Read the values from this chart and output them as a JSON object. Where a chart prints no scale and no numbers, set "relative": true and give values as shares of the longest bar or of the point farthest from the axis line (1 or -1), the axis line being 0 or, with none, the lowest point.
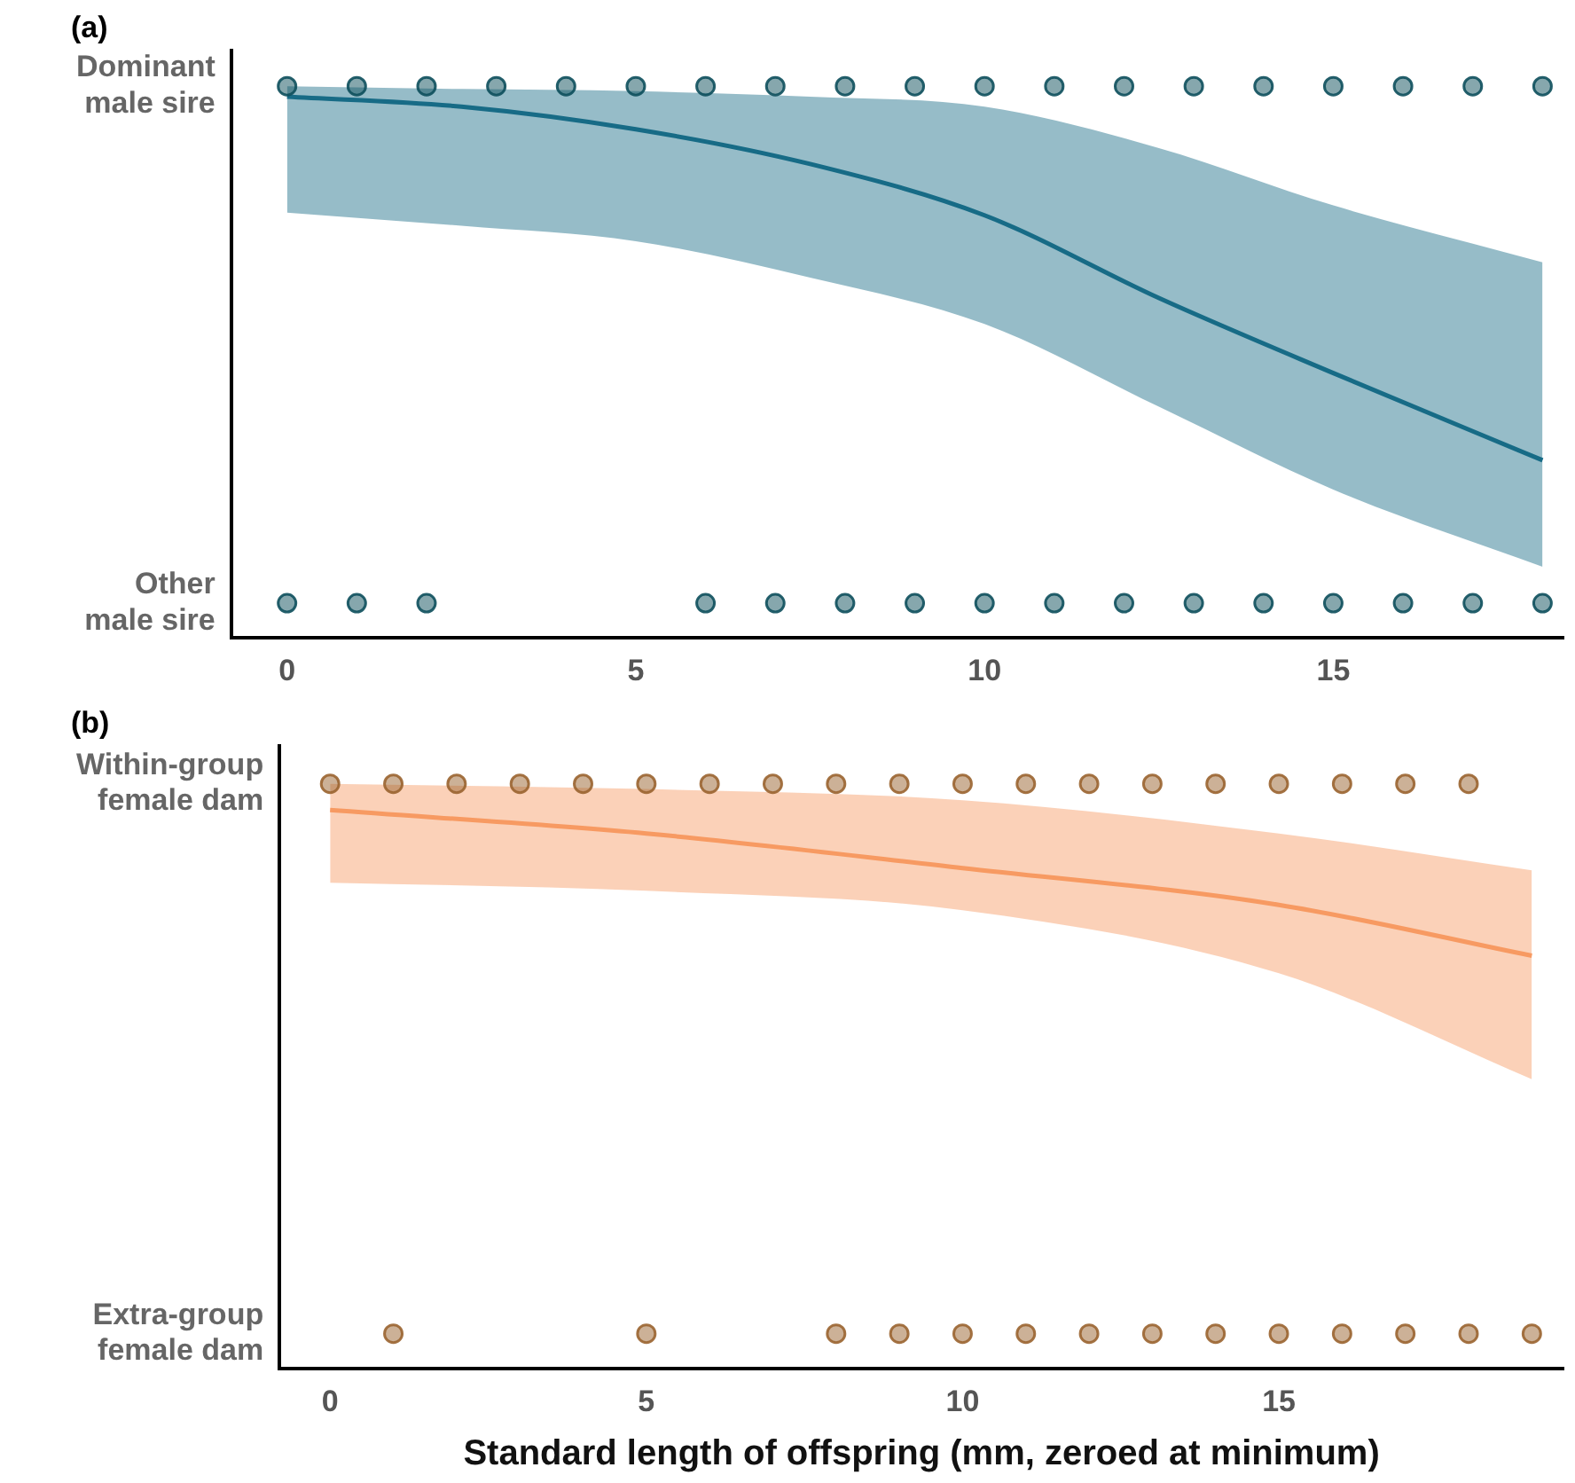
{
  "chart_data": [
    {
      "type": "line",
      "title": "(a)",
      "relative": true,
      "xlim": [
        -0.8,
        18.3
      ],
      "xticks": [
        0,
        5,
        10,
        15
      ],
      "y_categories": [
        "Dominant\nmale sire",
        "Other\nmale sire"
      ],
      "grid": false,
      "legend": false,
      "marker": "circle",
      "series": [
        {
          "type": "scatter",
          "color": "#0d4f5c",
          "x": [
            0,
            1,
            2,
            3,
            4,
            5,
            6,
            7,
            8,
            9,
            10,
            11,
            12,
            13,
            14,
            15,
            16,
            17,
            18,
            0,
            1,
            2,
            6,
            7,
            8,
            9,
            10,
            11,
            12,
            13,
            14,
            15,
            16,
            17,
            18
          ],
          "values": [
            1,
            1,
            1,
            1,
            1,
            1,
            1,
            1,
            1,
            1,
            1,
            1,
            1,
            1,
            1,
            1,
            1,
            1,
            1,
            0.063,
            0.063,
            0.063,
            0.063,
            0.063,
            0.063,
            0.063,
            0.063,
            0.063,
            0.063,
            0.063,
            0.063,
            0.063,
            0.063,
            0.063,
            0.063
          ]
        },
        {
          "type": "line",
          "marker": "none",
          "color": "#176b86",
          "x": [
            0,
            2.5,
            5,
            7.5,
            10,
            12.5,
            15,
            18
          ],
          "values": [
            0.981,
            0.963,
            0.922,
            0.859,
            0.766,
            0.616,
            0.48,
            0.322
          ],
          "lower": [
            0.771,
            0.747,
            0.719,
            0.653,
            0.569,
            0.419,
            0.269,
            0.129
          ],
          "upper": [
            1.0,
            0.995,
            0.991,
            0.981,
            0.963,
            0.888,
            0.784,
            0.681
          ]
        }
      ]
    },
    {
      "type": "line",
      "title": "(b)",
      "xlabel": "Standard length of offspring (mm, zeroed at minimum)",
      "relative": true,
      "xlim": [
        -0.8,
        19.5
      ],
      "xticks": [
        0,
        5,
        10,
        15
      ],
      "y_categories": [
        "Within-group\nfemale dam",
        "Extra-group\nfemale dam"
      ],
      "grid": false,
      "legend": false,
      "marker": "circle",
      "series": [
        {
          "type": "scatter",
          "color": "#9a6430",
          "x": [
            0,
            1,
            2,
            3,
            4,
            5,
            6,
            7,
            8,
            9,
            10,
            11,
            12,
            13,
            14,
            15,
            16,
            17,
            18,
            1,
            5,
            8,
            9,
            10,
            11,
            12,
            13,
            14,
            15,
            16,
            17,
            18,
            19
          ],
          "values": [
            1,
            1,
            1,
            1,
            1,
            1,
            1,
            1,
            1,
            1,
            1,
            1,
            1,
            1,
            1,
            1,
            1,
            1,
            1,
            0.06,
            0.06,
            0.06,
            0.06,
            0.06,
            0.06,
            0.06,
            0.06,
            0.06,
            0.06,
            0.06,
            0.06,
            0.06,
            0.06
          ]
        },
        {
          "type": "line",
          "marker": "none",
          "color": "#f79a62",
          "x": [
            0,
            5,
            10,
            15,
            19
          ],
          "values": [
            0.955,
            0.915,
            0.856,
            0.793,
            0.706
          ],
          "lower": [
            0.831,
            0.817,
            0.784,
            0.676,
            0.495
          ],
          "upper": [
            1.0,
            0.991,
            0.972,
            0.915,
            0.852
          ]
        }
      ]
    }
  ]
}
